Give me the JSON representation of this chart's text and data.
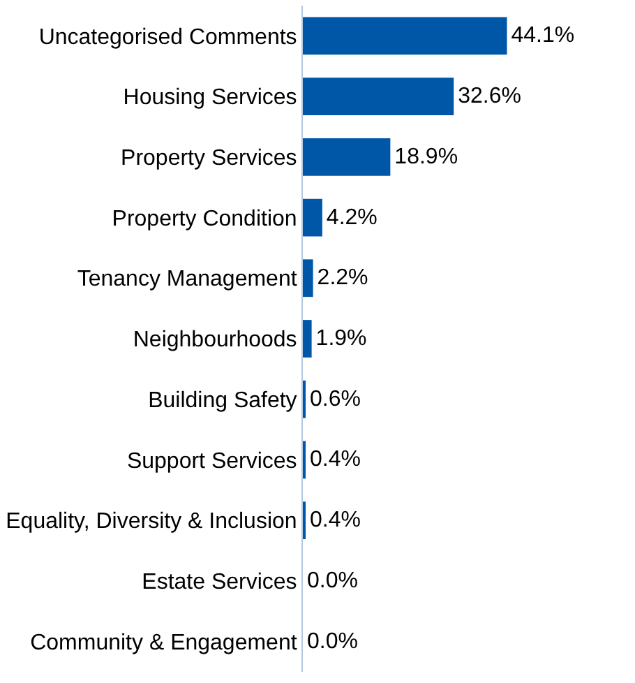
{
  "chart_data": {
    "type": "bar",
    "orientation": "horizontal",
    "categories": [
      "Uncategorised Comments",
      "Housing Services",
      "Property Services",
      "Property Condition",
      "Tenancy Management",
      "Neighbourhoods",
      "Building Safety",
      "Support Services",
      "Equality, Diversity & Inclusion",
      "Estate Services",
      "Community & Engagement"
    ],
    "values": [
      44.1,
      32.6,
      18.9,
      4.2,
      2.2,
      1.9,
      0.6,
      0.4,
      0.4,
      0.0,
      0.0
    ],
    "value_labels": [
      "44.1%",
      "32.6%",
      "18.9%",
      "4.2%",
      "2.2%",
      "1.9%",
      "0.6%",
      "0.4%",
      "0.4%",
      "0.0%",
      "0.0%"
    ],
    "color": "#0057a8"
  }
}
